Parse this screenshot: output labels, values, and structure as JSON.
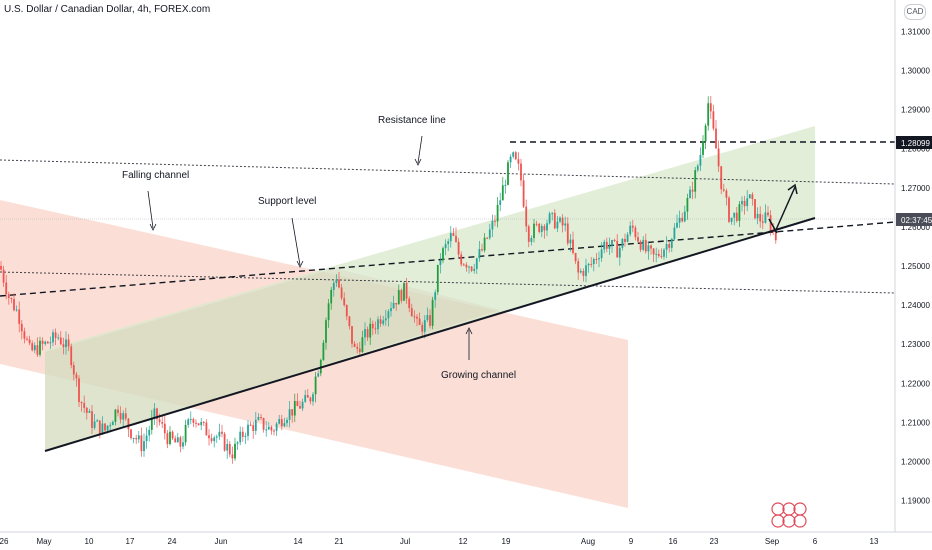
{
  "header": {
    "title": "U.S. Dollar / Canadian Dollar, 4h, FOREX.com",
    "currency_badge": "CAD"
  },
  "price_tags": {
    "level": "1.28099",
    "time": "02:37:45"
  },
  "colors": {
    "up": "#26a69a",
    "up_strong": "#1f9d3f",
    "down": "#ef5350",
    "growing_fill": "#d9e8cc",
    "falling_fill": "#f9d4c8",
    "line": "#131722"
  },
  "chart_data": {
    "type": "candlestick",
    "title": "U.S. Dollar / Canadian Dollar, 4h, FOREX.com",
    "ylim": [
      1.182,
      1.318
    ],
    "y_ticks": [
      "1.19000",
      "1.20000",
      "1.21000",
      "1.22000",
      "1.23000",
      "1.24000",
      "1.25000",
      "1.26000",
      "1.27000",
      "1.28000",
      "1.29000",
      "1.30000",
      "1.31000"
    ],
    "x_ticks": [
      "26",
      "May",
      "10",
      "17",
      "24",
      "Jun",
      "14",
      "21",
      "Jul",
      "12",
      "19",
      "Aug",
      "9",
      "16",
      "23",
      "Sep",
      "6",
      "13"
    ],
    "price_path": [
      [
        0,
        1.25
      ],
      [
        9,
        1.242
      ],
      [
        18,
        1.238
      ],
      [
        30,
        1.228
      ],
      [
        45,
        1.23
      ],
      [
        58,
        1.232
      ],
      [
        70,
        1.228
      ],
      [
        80,
        1.216
      ],
      [
        92,
        1.21
      ],
      [
        105,
        1.208
      ],
      [
        118,
        1.214
      ],
      [
        130,
        1.208
      ],
      [
        142,
        1.204
      ],
      [
        155,
        1.212
      ],
      [
        168,
        1.206
      ],
      [
        180,
        1.204
      ],
      [
        192,
        1.212
      ],
      [
        205,
        1.208
      ],
      [
        220,
        1.206
      ],
      [
        232,
        1.202
      ],
      [
        245,
        1.208
      ],
      [
        258,
        1.21
      ],
      [
        272,
        1.208
      ],
      [
        285,
        1.212
      ],
      [
        298,
        1.214
      ],
      [
        310,
        1.216
      ],
      [
        320,
        1.226
      ],
      [
        328,
        1.24
      ],
      [
        336,
        1.248
      ],
      [
        345,
        1.238
      ],
      [
        355,
        1.228
      ],
      [
        365,
        1.232
      ],
      [
        378,
        1.236
      ],
      [
        390,
        1.24
      ],
      [
        405,
        1.244
      ],
      [
        418,
        1.234
      ],
      [
        430,
        1.236
      ],
      [
        440,
        1.252
      ],
      [
        452,
        1.258
      ],
      [
        460,
        1.252
      ],
      [
        472,
        1.25
      ],
      [
        482,
        1.254
      ],
      [
        495,
        1.262
      ],
      [
        505,
        1.272
      ],
      [
        512,
        1.278
      ],
      [
        520,
        1.274
      ],
      [
        528,
        1.258
      ],
      [
        538,
        1.26
      ],
      [
        550,
        1.262
      ],
      [
        565,
        1.26
      ],
      [
        578,
        1.248
      ],
      [
        590,
        1.25
      ],
      [
        605,
        1.256
      ],
      [
        618,
        1.254
      ],
      [
        632,
        1.26
      ],
      [
        645,
        1.254
      ],
      [
        655,
        1.252
      ],
      [
        668,
        1.256
      ],
      [
        680,
        1.262
      ],
      [
        690,
        1.268
      ],
      [
        700,
        1.278
      ],
      [
        708,
        1.292
      ],
      [
        716,
        1.28
      ],
      [
        722,
        1.27
      ],
      [
        730,
        1.262
      ],
      [
        740,
        1.264
      ],
      [
        748,
        1.268
      ],
      [
        758,
        1.262
      ],
      [
        768,
        1.262
      ],
      [
        776,
        1.257
      ]
    ],
    "annotations": [
      {
        "text": "Resistance line"
      },
      {
        "text": "Falling channel"
      },
      {
        "text": "Support level"
      },
      {
        "text": "Growing channel"
      }
    ]
  }
}
